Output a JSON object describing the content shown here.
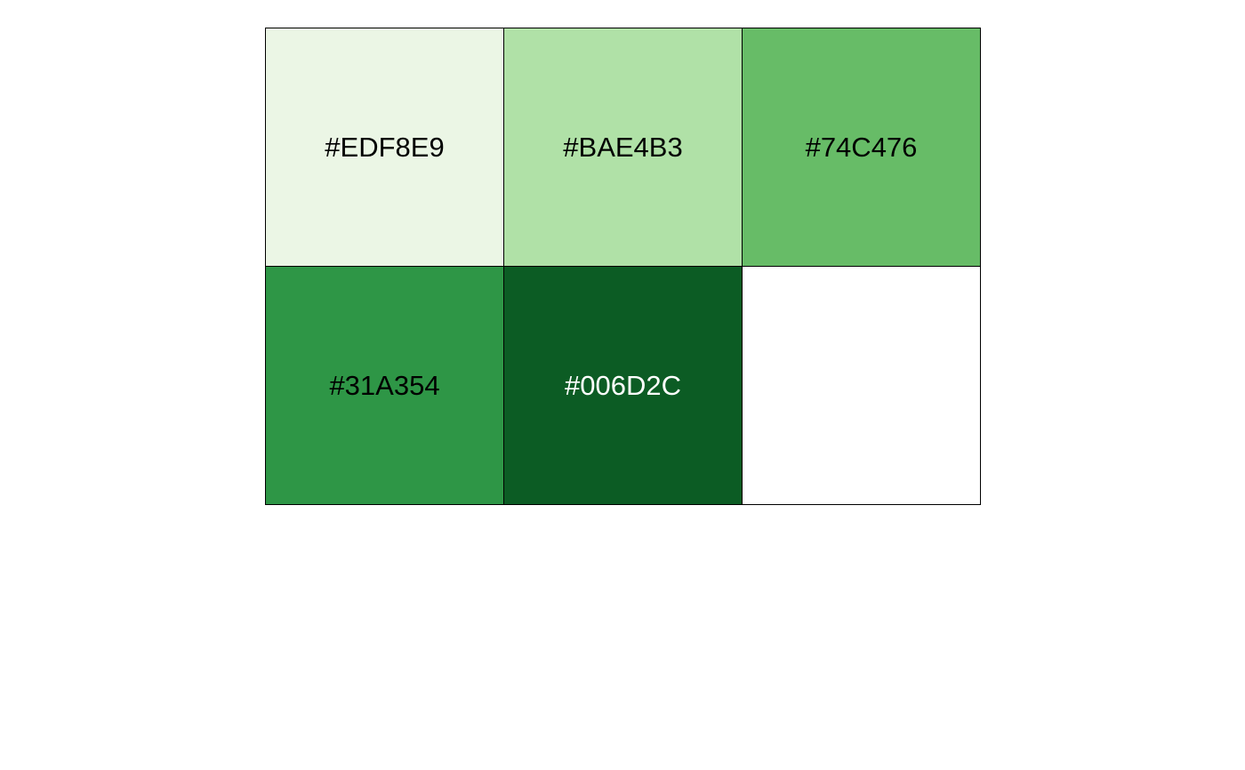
{
  "palette": {
    "swatches": [
      {
        "label": "#EDF8E9",
        "fill": "#EBF6E5",
        "text_color": "#000000"
      },
      {
        "label": "#BAE4B3",
        "fill": "#B0E1A7",
        "text_color": "#000000"
      },
      {
        "label": "#74C476",
        "fill": "#67BC67",
        "text_color": "#000000"
      },
      {
        "label": "#31A354",
        "fill": "#2E9646",
        "text_color": "#000000"
      },
      {
        "label": "#006D2C",
        "fill": "#0C5C24",
        "text_color": "#FFFFFF"
      },
      {
        "label": "",
        "fill": "#FFFFFF",
        "text_color": "#000000"
      }
    ]
  }
}
